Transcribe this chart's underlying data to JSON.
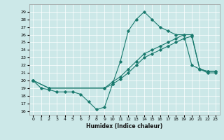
{
  "xlabel": "Humidex (Indice chaleur)",
  "bg_color": "#cce8e8",
  "line_color": "#1a7a6e",
  "grid_color": "#ffffff",
  "x_ticks": [
    0,
    1,
    2,
    3,
    4,
    5,
    6,
    7,
    8,
    9,
    10,
    11,
    12,
    13,
    14,
    15,
    16,
    17,
    18,
    19,
    20,
    21,
    22,
    23
  ],
  "y_ticks": [
    16,
    17,
    18,
    19,
    20,
    21,
    22,
    23,
    24,
    25,
    26,
    27,
    28,
    29
  ],
  "ylim": [
    15.5,
    30.0
  ],
  "xlim": [
    -0.5,
    23.5
  ],
  "line1_x": [
    0,
    1,
    2,
    3,
    4,
    5,
    6,
    7,
    8,
    9,
    10,
    11,
    12,
    13,
    14,
    15,
    16,
    17,
    18,
    19,
    20,
    21,
    22,
    23
  ],
  "line1_y": [
    20,
    19,
    18.8,
    18.5,
    18.5,
    18.5,
    18.2,
    17.2,
    16.2,
    16.5,
    19.5,
    22.5,
    26.5,
    28.0,
    29.0,
    28.0,
    27.0,
    26.5,
    26.0,
    26.0,
    22.0,
    21.5,
    21.0,
    21.0
  ],
  "line2_x": [
    0,
    2,
    9,
    10,
    11,
    12,
    13,
    14,
    15,
    16,
    17,
    18,
    19,
    20,
    21,
    22,
    23
  ],
  "line2_y": [
    20,
    19,
    19,
    19.5,
    20.2,
    21.0,
    22.0,
    23.0,
    23.5,
    24.0,
    24.5,
    25.0,
    25.5,
    25.8,
    21.5,
    21.2,
    21.2
  ],
  "line3_x": [
    0,
    2,
    9,
    10,
    11,
    12,
    13,
    14,
    15,
    16,
    17,
    18,
    19,
    20,
    21,
    22,
    23
  ],
  "line3_y": [
    20,
    19,
    19,
    19.8,
    20.5,
    21.5,
    22.5,
    23.5,
    24.0,
    24.5,
    25.0,
    25.5,
    26.0,
    26.0,
    21.5,
    21.2,
    21.2
  ]
}
